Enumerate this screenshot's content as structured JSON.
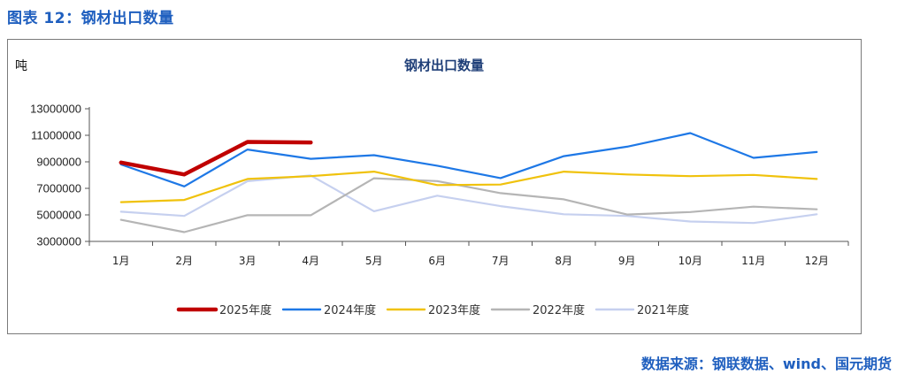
{
  "caption": "图表 12：钢材出口数量",
  "source": "数据来源：钢联数据、wind、国元期货",
  "chart_data": {
    "type": "line",
    "title": "钢材出口数量",
    "ylabel": "吨",
    "xlabel": "",
    "ylim": [
      3000000,
      13000000
    ],
    "yticks": [
      3000000,
      5000000,
      7000000,
      9000000,
      11000000,
      13000000
    ],
    "ytick_labels": [
      "3000000",
      "5000000",
      "7000000",
      "9000000",
      "11000000",
      "13000000"
    ],
    "categories": [
      "1月",
      "2月",
      "3月",
      "4月",
      "5月",
      "6月",
      "7月",
      "8月",
      "9月",
      "10月",
      "11月",
      "12月"
    ],
    "legend_position": "bottom",
    "grid": false,
    "series": [
      {
        "name": "2025年度",
        "color": "#c00000",
        "width": 4.5,
        "values": [
          8950000,
          8050000,
          10500000,
          10460000,
          null,
          null,
          null,
          null,
          null,
          null,
          null,
          null
        ]
      },
      {
        "name": "2024年度",
        "color": "#1e78e6",
        "width": 2.2,
        "values": [
          8800000,
          7150000,
          9930000,
          9230000,
          9500000,
          8710000,
          7770000,
          9430000,
          10140000,
          11170000,
          9300000,
          9740000
        ]
      },
      {
        "name": "2023年度",
        "color": "#f0c20c",
        "width": 2.2,
        "values": [
          5960000,
          6130000,
          7710000,
          7920000,
          8260000,
          7250000,
          7290000,
          8260000,
          8050000,
          7920000,
          8010000,
          7710000
        ]
      },
      {
        "name": "2022年度",
        "color": "#b5b5b5",
        "width": 2.2,
        "values": [
          4630000,
          3700000,
          4980000,
          4970000,
          7760000,
          7550000,
          6640000,
          6170000,
          5030000,
          5210000,
          5620000,
          5420000
        ]
      },
      {
        "name": "2021年度",
        "color": "#c6d0ef",
        "width": 2.2,
        "values": [
          5240000,
          4920000,
          7540000,
          7970000,
          5270000,
          6450000,
          5660000,
          5050000,
          4920000,
          4500000,
          4390000,
          5050000
        ]
      }
    ]
  }
}
